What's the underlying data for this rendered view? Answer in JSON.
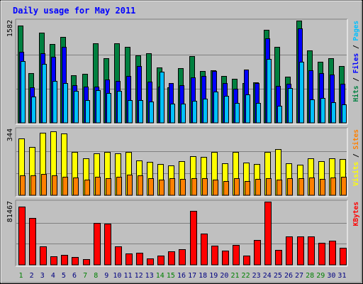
{
  "chart_data": {
    "title": "Daily usage for May 2011",
    "type": "bar",
    "x": {
      "labels": [
        "1",
        "2",
        "3",
        "4",
        "5",
        "6",
        "7",
        "8",
        "9",
        "10",
        "11",
        "12",
        "13",
        "14",
        "15",
        "16",
        "17",
        "18",
        "19",
        "20",
        "21",
        "22",
        "23",
        "24",
        "25",
        "26",
        "27",
        "28",
        "29",
        "30",
        "31"
      ],
      "weekend_days": [
        1,
        7,
        8,
        14,
        15,
        21,
        22,
        28,
        29
      ]
    },
    "panels": [
      {
        "name": "pages-files-hits",
        "ymax_label": "1582",
        "ymax": 1582,
        "series": [
          {
            "name": "Hits",
            "color": "#008040",
            "values": [
              1510,
              770,
              1390,
              1220,
              1330,
              740,
              760,
              1230,
              1000,
              1230,
              1180,
              1040,
              1080,
              860,
              550,
              850,
              1030,
              800,
              810,
              720,
              680,
              620,
              630,
              1440,
              1180,
              710,
              1582,
              1120,
              940,
              1000,
              880
            ]
          },
          {
            "name": "Files",
            "color": "#0000ff",
            "values": [
              1100,
              550,
              1080,
              1020,
              1180,
              580,
              560,
              560,
              670,
              650,
              730,
              880,
              640,
              560,
              620,
              580,
              700,
              730,
              800,
              620,
              530,
              820,
              620,
              1310,
              570,
              600,
              1460,
              810,
              770,
              750,
              600
            ]
          },
          {
            "name": "Pages",
            "color": "#00c0ff",
            "values": [
              960,
              410,
              910,
              650,
              610,
              490,
              350,
              500,
              460,
              490,
              350,
              350,
              330,
              790,
              300,
              300,
              340,
              370,
              480,
              420,
              310,
              440,
              310,
              990,
              260,
              540,
              950,
              360,
              380,
              320,
              290
            ]
          }
        ],
        "label_parts": [
          {
            "text": "Hits",
            "color": "#008040"
          },
          {
            "text": " / ",
            "color": "#000000"
          },
          {
            "text": "Files",
            "color": "#0000ff"
          },
          {
            "text": " / ",
            "color": "#000000"
          },
          {
            "text": "Pages",
            "color": "#00c0ff"
          }
        ]
      },
      {
        "name": "visits-sites",
        "ymax_label": "344",
        "ymax": 344,
        "series": [
          {
            "name": "Visits",
            "color": "#ffff00",
            "values": [
              297,
              253,
              325,
              333,
              322,
              225,
              192,
              220,
              226,
              220,
              225,
              182,
              172,
              163,
              157,
              178,
              203,
              200,
              227,
              165,
              225,
              170,
              163,
              227,
              240,
              167,
              158,
              193,
              178,
              193,
              190
            ]
          },
          {
            "name": "Sites",
            "color": "#ff8000",
            "values": [
              103,
              103,
              111,
              102,
              96,
              92,
              80,
              96,
              90,
              97,
              107,
              102,
              89,
              83,
              88,
              86,
              90,
              89,
              83,
              75,
              88,
              73,
              85,
              90,
              80,
              88,
              90,
              91,
              85,
              91,
              97
            ]
          }
        ],
        "label_parts": [
          {
            "text": "Visits",
            "color": "#ffff00"
          },
          {
            "text": " / ",
            "color": "#000000"
          },
          {
            "text": "Sites",
            "color": "#ff8000"
          }
        ]
      },
      {
        "name": "kbytes",
        "ymax_label": "81467",
        "ymax": 81467,
        "series": [
          {
            "name": "KBytes",
            "color": "#ff0000",
            "values": [
              75000,
              60000,
              24000,
              11000,
              13000,
              10000,
              7000,
              54000,
              53000,
              24000,
              15000,
              16000,
              8000,
              12000,
              17000,
              20000,
              70000,
              40000,
              25000,
              18000,
              26000,
              12000,
              32000,
              81467,
              19000,
              37000,
              37000,
              37000,
              28000,
              31000,
              22000
            ]
          }
        ],
        "label_parts": [
          {
            "text": "KBytes",
            "color": "#ff0000"
          }
        ]
      }
    ]
  }
}
